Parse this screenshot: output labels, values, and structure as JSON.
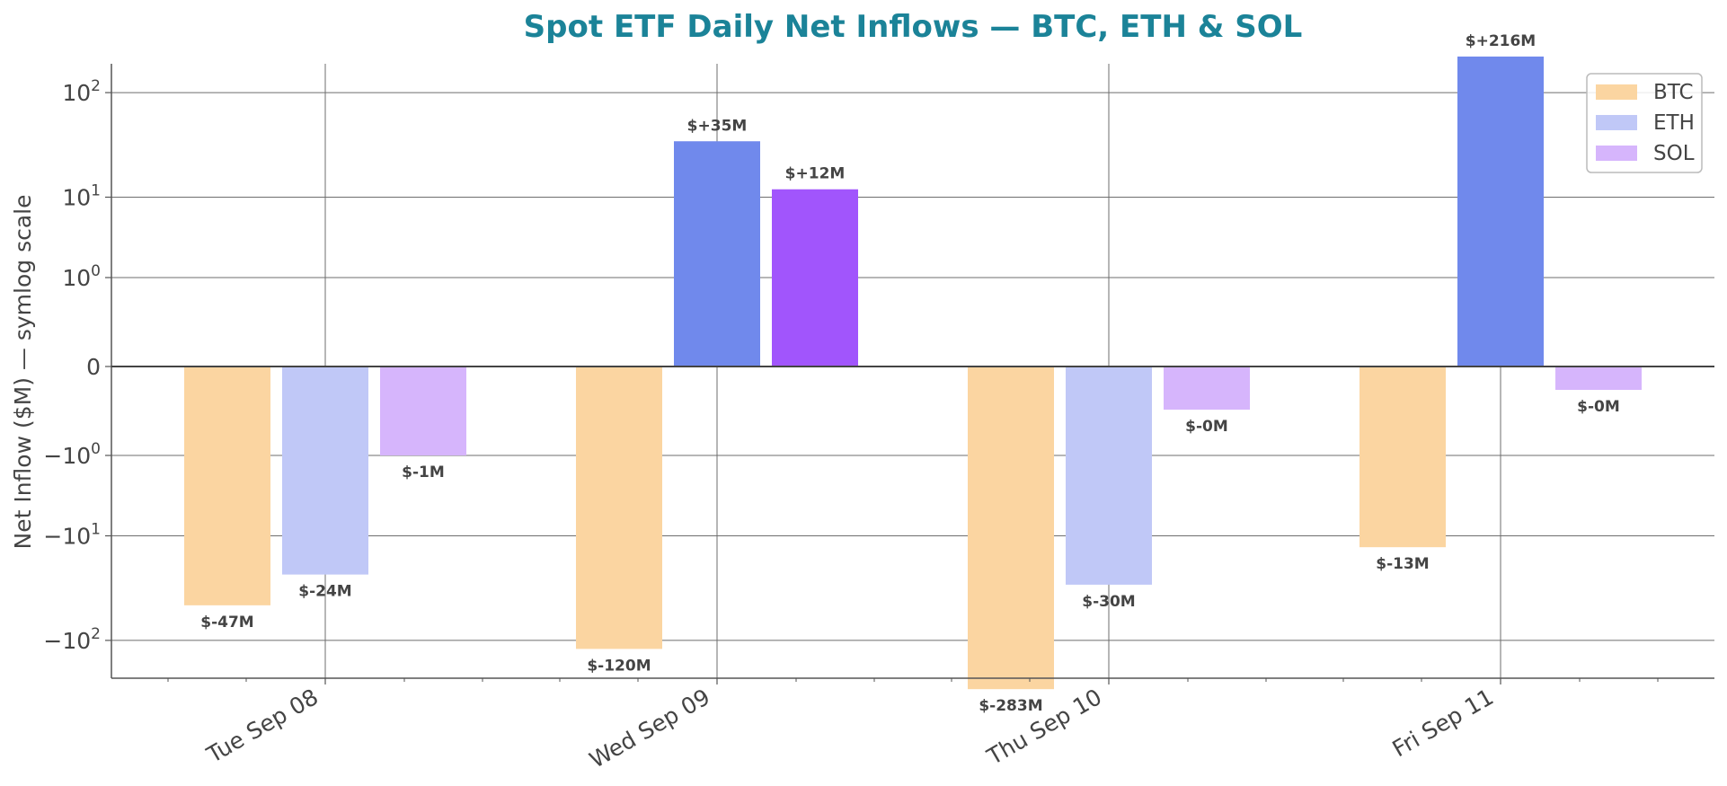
{
  "chart_data": {
    "type": "bar",
    "title": "Spot ETF Daily Net Inflows — BTC, ETH & SOL",
    "ylabel": "Net Inflow ($M) — symlog scale",
    "xlabel": "",
    "yscale": "symlog",
    "ylim": [
      -500,
      500
    ],
    "yticks": [
      {
        "value": 100,
        "base": "10",
        "exp": "2",
        "sign": ""
      },
      {
        "value": 10,
        "base": "10",
        "exp": "1",
        "sign": ""
      },
      {
        "value": 1,
        "base": "10",
        "exp": "0",
        "sign": ""
      },
      {
        "value": 0,
        "base": "0",
        "exp": "",
        "sign": ""
      },
      {
        "value": -1,
        "base": "10",
        "exp": "0",
        "sign": "−"
      },
      {
        "value": -10,
        "base": "10",
        "exp": "1",
        "sign": "−"
      },
      {
        "value": -100,
        "base": "10",
        "exp": "2",
        "sign": "−"
      }
    ],
    "grid": true,
    "legend_position": "top-right",
    "categories": [
      "Tue Sep 08",
      "Wed Sep 09",
      "Thu Sep 10",
      "Fri Sep 11"
    ],
    "series": [
      {
        "name": "BTC",
        "color": "#fbd5a1",
        "values": [
          -47,
          -120,
          -283,
          -13
        ],
        "labels": [
          "$-47M",
          "$-120M",
          "$-283M",
          "$-13M"
        ]
      },
      {
        "name": "ETH",
        "color": "#c0c8f7",
        "positive_color": "#7089ec",
        "values": [
          -24,
          35,
          -30,
          216
        ],
        "labels": [
          "$-24M",
          "$+35M",
          "$-30M",
          "$+216M"
        ]
      },
      {
        "name": "SOL",
        "color": "#d6b5fc",
        "positive_color": "#a155fc",
        "values": [
          -1,
          12,
          -0.4,
          -0.2
        ],
        "labels": [
          "$-1M",
          "$+12M",
          "$-0M",
          "$-0M"
        ]
      }
    ],
    "colors": {
      "title": "#1b8398",
      "axis": "#555555",
      "grid": "#6e6e6e"
    }
  }
}
